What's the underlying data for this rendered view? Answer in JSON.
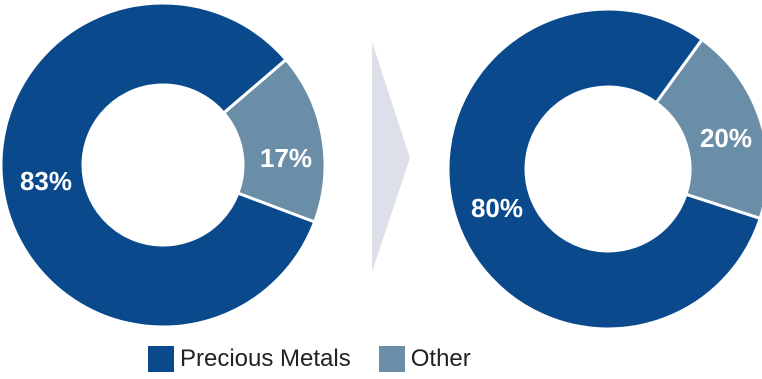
{
  "colors": {
    "precious_metals": "#0a4a8c",
    "other": "#6a8ea8",
    "arrow": "#dde0e8"
  },
  "chart_data": [
    {
      "type": "pie",
      "variant": "donut",
      "title": "",
      "slices": [
        {
          "name": "Precious Metals",
          "value": 83,
          "label": "83%"
        },
        {
          "name": "Other",
          "value": 17,
          "label": "17%"
        }
      ]
    },
    {
      "type": "pie",
      "variant": "donut",
      "title": "",
      "slices": [
        {
          "name": "Precious Metals",
          "value": 80,
          "label": "80%"
        },
        {
          "name": "Other",
          "value": 20,
          "label": "20%"
        }
      ]
    }
  ],
  "legend": [
    {
      "name": "Precious Metals",
      "color": "#0a4a8c"
    },
    {
      "name": "Other",
      "color": "#6a8ea8"
    }
  ]
}
